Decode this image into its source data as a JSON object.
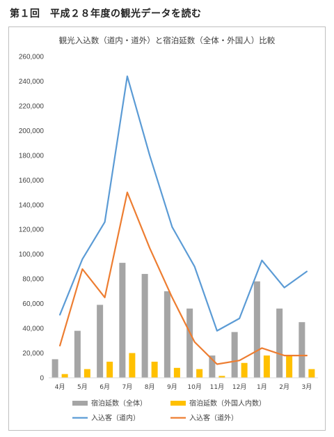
{
  "page": {
    "heading": "第１回　平成２８年度の観光データを読む"
  },
  "chart_data": {
    "type": "bar",
    "title": "観光入込数（道内・道外）と宿泊延数（全体・外国人）比較",
    "xlabel": "",
    "ylabel": "",
    "categories": [
      "4月",
      "5月",
      "6月",
      "7月",
      "8月",
      "9月",
      "10月",
      "11月",
      "12月",
      "1月",
      "2月",
      "3月"
    ],
    "ylim": [
      0,
      260000
    ],
    "yticks": [
      0,
      20000,
      40000,
      60000,
      80000,
      100000,
      120000,
      140000,
      160000,
      180000,
      200000,
      220000,
      240000,
      260000
    ],
    "ytick_labels": [
      "0",
      "20,000",
      "40,000",
      "60,000",
      "80,000",
      "100,000",
      "120,000",
      "140,000",
      "160,000",
      "180,000",
      "200,000",
      "220,000",
      "240,000",
      "260,000"
    ],
    "grid": false,
    "legend_position": "bottom",
    "series": [
      {
        "name": "宿泊延数（全体）",
        "kind": "bar",
        "color": "#a5a5a5",
        "values": [
          15000,
          38000,
          59000,
          93000,
          84000,
          70000,
          56000,
          18000,
          37000,
          78000,
          56000,
          45000
        ]
      },
      {
        "name": "宿泊延数（外国人内数）",
        "kind": "bar",
        "color": "#ffc000",
        "values": [
          3000,
          7000,
          13000,
          20000,
          13000,
          8000,
          7000,
          1500,
          12000,
          18000,
          18000,
          7000
        ]
      },
      {
        "name": "入込客（道内）",
        "kind": "line",
        "color": "#5b9bd5",
        "values": [
          51000,
          96000,
          126000,
          244000,
          180000,
          122000,
          90000,
          38000,
          48000,
          95000,
          73000,
          86000
        ]
      },
      {
        "name": "入込客（道外）",
        "kind": "line",
        "color": "#ed7d31",
        "values": [
          26000,
          88000,
          65000,
          150000,
          105000,
          65000,
          29000,
          11000,
          14000,
          24000,
          18000,
          18000
        ]
      }
    ]
  }
}
